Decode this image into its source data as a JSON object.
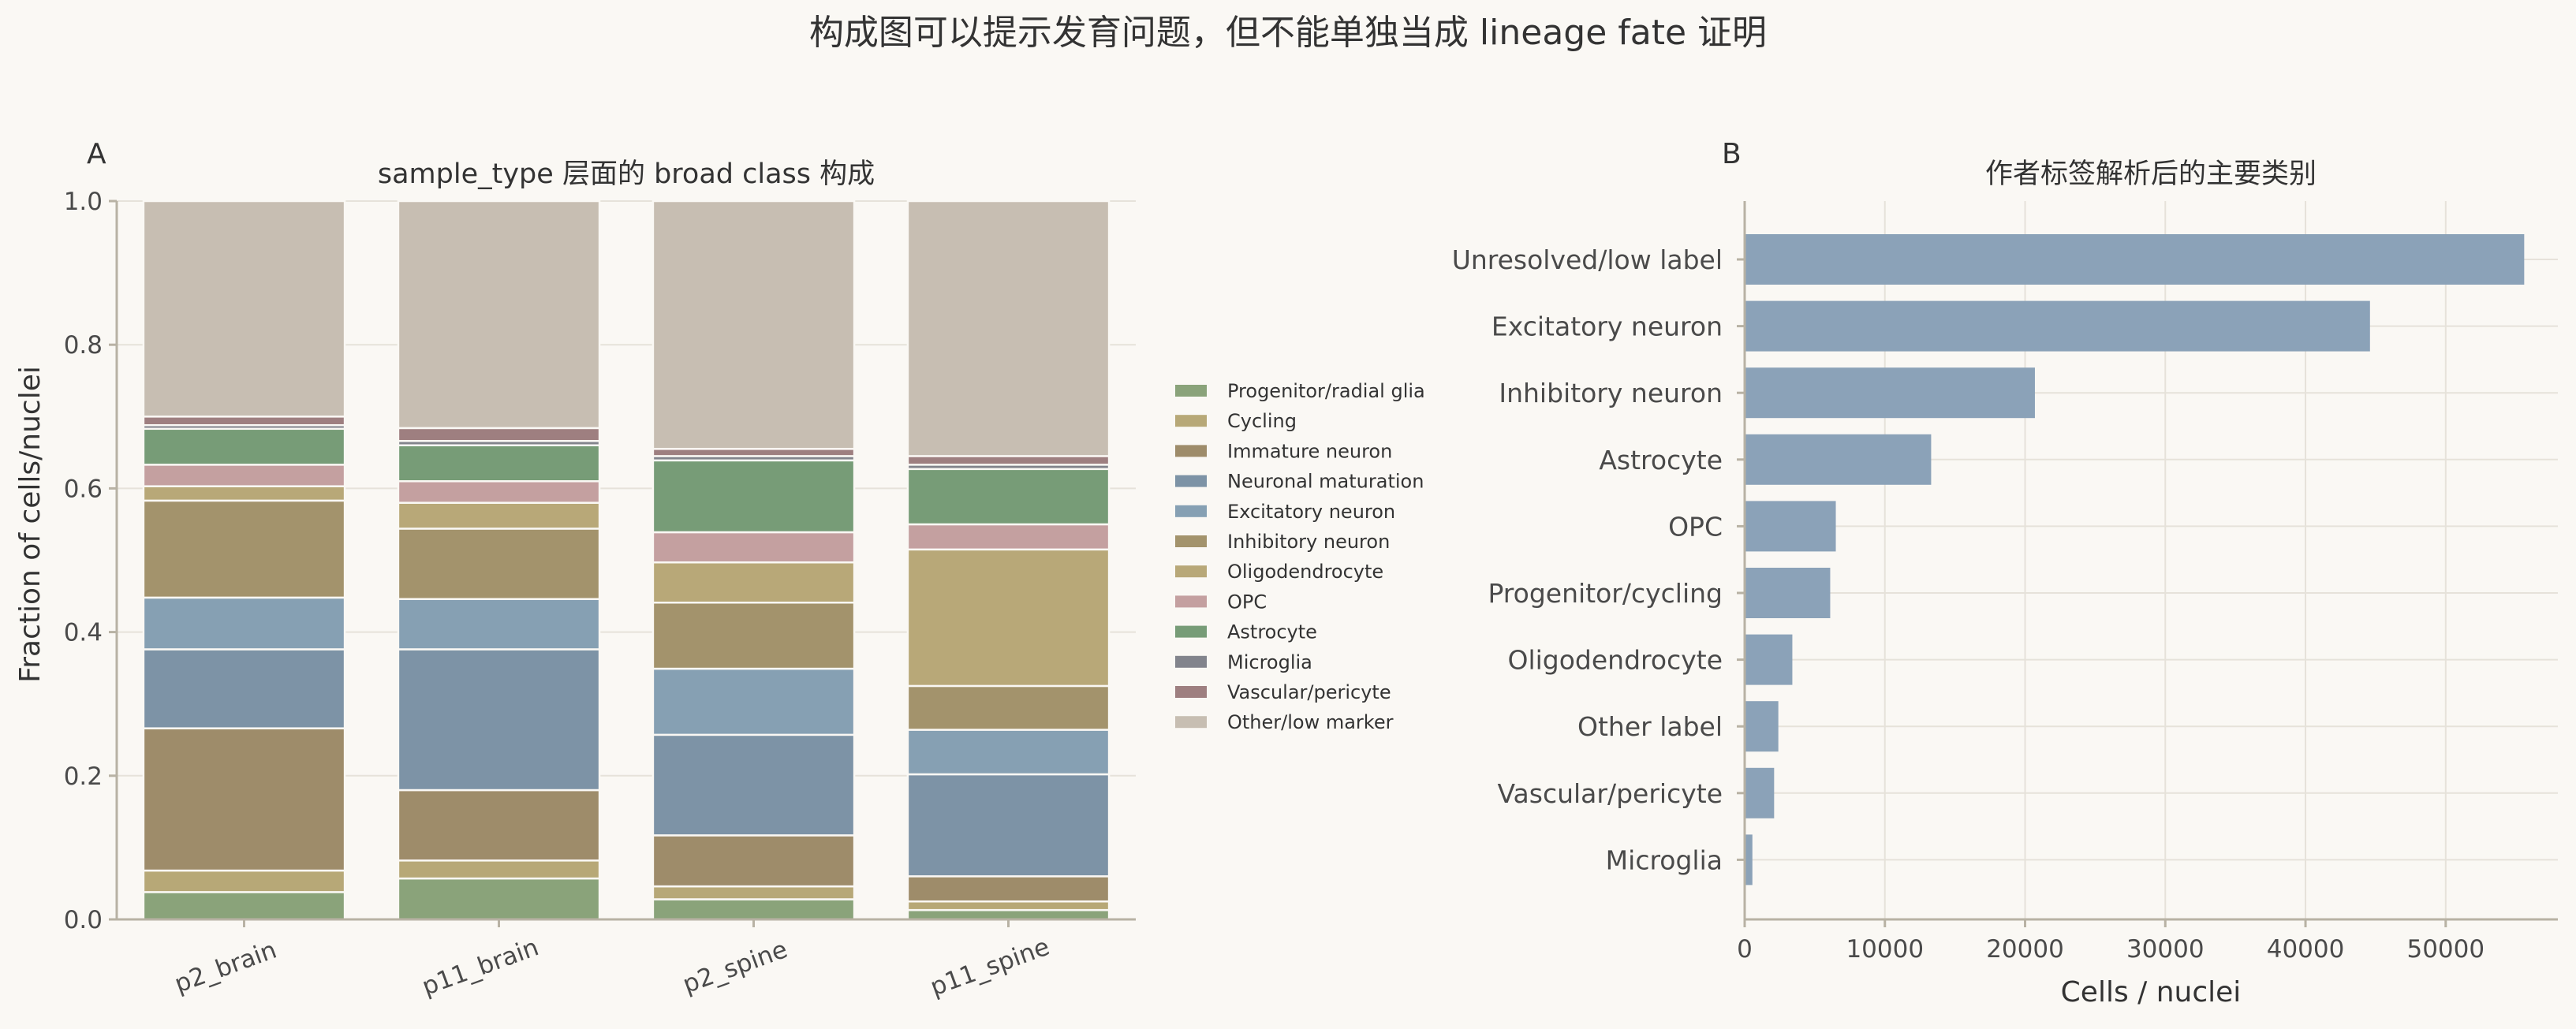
{
  "title": "构成图可以提示发育问题，但不能单独当成 lineage fate 证明",
  "chart_data": [
    {
      "panel": "A",
      "type": "bar",
      "stacked": true,
      "title": "sample_type 层面的 broad class 构成",
      "ylabel": "Fraction of cells/nuclei",
      "xlabel": "",
      "ylim": [
        0,
        1.0
      ],
      "yticks": [
        "0.0",
        "0.2",
        "0.4",
        "0.6",
        "0.8",
        "1.0"
      ],
      "categories": [
        "p2_brain",
        "p11_brain",
        "p2_spine",
        "p11_spine"
      ],
      "legend_position": "right-outside",
      "grid": true,
      "series": [
        {
          "name": "Progenitor/radial glia",
          "color": "#8aa37a",
          "values": [
            0.038,
            0.057,
            0.028,
            0.013
          ]
        },
        {
          "name": "Cycling",
          "color": "#b7a877",
          "values": [
            0.03,
            0.025,
            0.018,
            0.012
          ]
        },
        {
          "name": "Immature neuron",
          "color": "#9e8c6a",
          "values": [
            0.198,
            0.098,
            0.071,
            0.035
          ]
        },
        {
          "name": "Neuronal maturation",
          "color": "#7d93a6",
          "values": [
            0.11,
            0.196,
            0.14,
            0.142
          ]
        },
        {
          "name": "Excitatory neuron",
          "color": "#86a0b3",
          "values": [
            0.072,
            0.07,
            0.092,
            0.062
          ]
        },
        {
          "name": "Inhibitory neuron",
          "color": "#a3936c",
          "values": [
            0.135,
            0.098,
            0.092,
            0.061
          ]
        },
        {
          "name": "Oligodendrocyte",
          "color": "#b8a878",
          "values": [
            0.02,
            0.036,
            0.056,
            0.19
          ]
        },
        {
          "name": "OPC",
          "color": "#c4a0a0",
          "values": [
            0.03,
            0.03,
            0.042,
            0.035
          ]
        },
        {
          "name": "Astrocyte",
          "color": "#779c77",
          "values": [
            0.05,
            0.05,
            0.1,
            0.077
          ]
        },
        {
          "name": "Microglia",
          "color": "#82848c",
          "values": [
            0.005,
            0.006,
            0.006,
            0.006
          ]
        },
        {
          "name": "Vascular/pericyte",
          "color": "#9e7f80",
          "values": [
            0.012,
            0.018,
            0.01,
            0.012
          ]
        },
        {
          "name": "Other/low marker",
          "color": "#c7beb2",
          "values": [
            0.3,
            0.316,
            0.345,
            0.355
          ]
        }
      ]
    },
    {
      "panel": "B",
      "type": "bar",
      "orientation": "horizontal",
      "title": "作者标签解析后的主要类别",
      "xlabel": "Cells / nuclei",
      "ylabel": "",
      "xlim": [
        0,
        58000
      ],
      "xticks": [
        "0",
        "10000",
        "20000",
        "30000",
        "40000",
        "50000"
      ],
      "grid": true,
      "color": "#8ba2b8",
      "categories": [
        "Unresolved/low label",
        "Excitatory neuron",
        "Inhibitory neuron",
        "Astrocyte",
        "OPC",
        "Progenitor/cycling",
        "Oligodendrocyte",
        "Other label",
        "Vascular/pericyte",
        "Microglia"
      ],
      "values": [
        55600,
        44600,
        20700,
        13300,
        6500,
        6100,
        3400,
        2400,
        2100,
        550
      ]
    }
  ]
}
